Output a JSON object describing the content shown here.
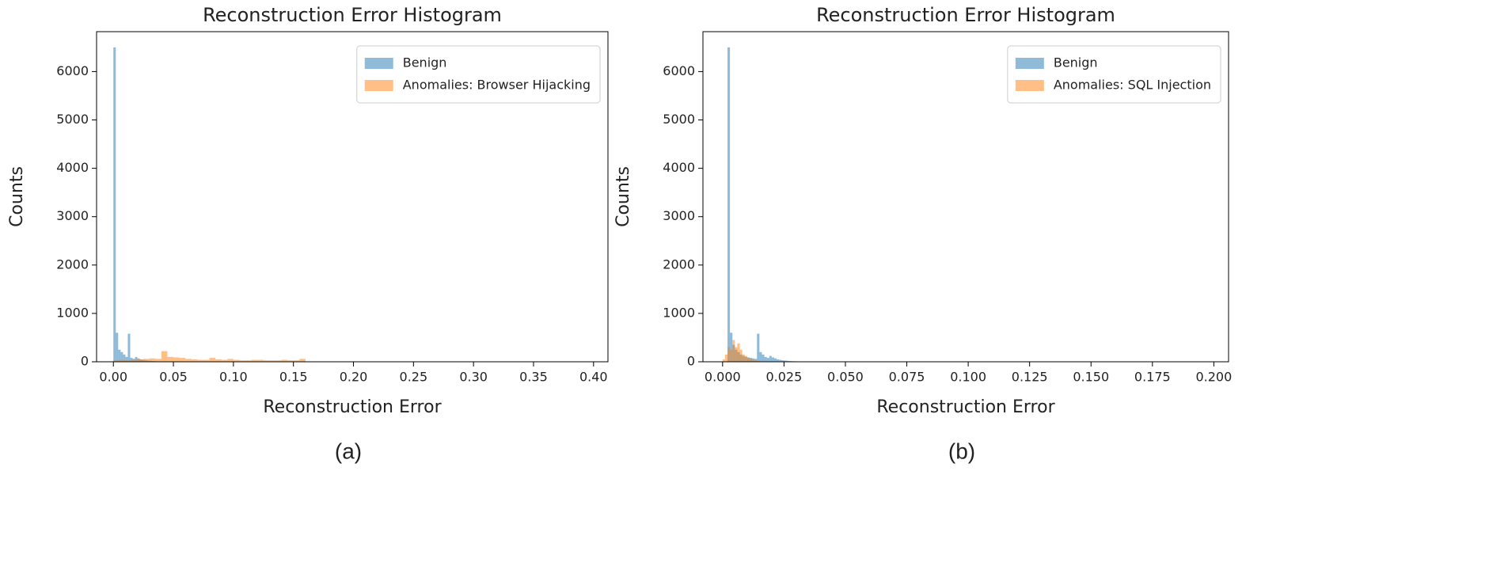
{
  "chart_data": [
    {
      "type": "histogram",
      "title": "Reconstruction Error Histogram",
      "xlabel": "Reconstruction Error",
      "ylabel": "Counts",
      "caption": "(a)",
      "legend": "upper right",
      "xlim": [
        -0.014,
        0.412
      ],
      "ylim": [
        0,
        6825
      ],
      "xticks": [
        {
          "value": 0,
          "label": "0.00"
        },
        {
          "value": 0.05,
          "label": "0.05"
        },
        {
          "value": 0.1,
          "label": "0.10"
        },
        {
          "value": 0.15,
          "label": "0.15"
        },
        {
          "value": 0.2,
          "label": "0.20"
        },
        {
          "value": 0.25,
          "label": "0.25"
        },
        {
          "value": 0.3,
          "label": "0.30"
        },
        {
          "value": 0.35,
          "label": "0.35"
        },
        {
          "value": 0.4,
          "label": "0.40"
        }
      ],
      "yticks": [
        0,
        1000,
        2000,
        3000,
        4000,
        5000,
        6000
      ],
      "series": [
        {
          "name": "Benign",
          "color": "#1f77b4",
          "bins": [
            0,
            0.002,
            0.004,
            0.006,
            0.008,
            0.01,
            0.012,
            0.014,
            0.016,
            0.018,
            0.02,
            0.022,
            0.024,
            0.026,
            0.028,
            0.03,
            0.032,
            0.034,
            0.036,
            0.038,
            0.04
          ],
          "values": [
            6500,
            600,
            250,
            200,
            150,
            100,
            580,
            80,
            60,
            100,
            70,
            50,
            40,
            30,
            25,
            20,
            15,
            10,
            8,
            5
          ]
        },
        {
          "name": "Anomalies: Browser Hijacking",
          "color": "#ff7f0e",
          "bins": [
            0,
            0.005,
            0.01,
            0.015,
            0.02,
            0.025,
            0.03,
            0.035,
            0.04,
            0.045,
            0.05,
            0.055,
            0.06,
            0.065,
            0.07,
            0.075,
            0.08,
            0.085,
            0.09,
            0.095,
            0.1,
            0.105,
            0.11,
            0.115,
            0.12,
            0.125,
            0.13,
            0.135,
            0.14,
            0.145,
            0.15,
            0.155,
            0.16
          ],
          "values": [
            30,
            40,
            30,
            40,
            50,
            60,
            70,
            60,
            220,
            100,
            90,
            80,
            60,
            50,
            40,
            40,
            80,
            50,
            40,
            60,
            40,
            30,
            30,
            40,
            40,
            30,
            30,
            30,
            40,
            30,
            30,
            60
          ]
        }
      ]
    },
    {
      "type": "histogram",
      "title": "Reconstruction Error Histogram",
      "xlabel": "Reconstruction Error",
      "ylabel": "Counts",
      "caption": "(b)",
      "legend": "upper right",
      "xlim": [
        -0.008,
        0.206
      ],
      "ylim": [
        0,
        6825
      ],
      "xticks": [
        {
          "value": 0,
          "label": "0.000"
        },
        {
          "value": 0.025,
          "label": "0.025"
        },
        {
          "value": 0.05,
          "label": "0.050"
        },
        {
          "value": 0.075,
          "label": "0.075"
        },
        {
          "value": 0.1,
          "label": "0.100"
        },
        {
          "value": 0.125,
          "label": "0.125"
        },
        {
          "value": 0.15,
          "label": "0.150"
        },
        {
          "value": 0.175,
          "label": "0.175"
        },
        {
          "value": 0.2,
          "label": "0.200"
        }
      ],
      "yticks": [
        0,
        1000,
        2000,
        3000,
        4000,
        5000,
        6000
      ],
      "series": [
        {
          "name": "Benign",
          "color": "#1f77b4",
          "bins": [
            0.002,
            0.003,
            0.004,
            0.005,
            0.006,
            0.007,
            0.008,
            0.009,
            0.01,
            0.011,
            0.012,
            0.013,
            0.014,
            0.015,
            0.016,
            0.017,
            0.018,
            0.019,
            0.02,
            0.021,
            0.022,
            0.023,
            0.024,
            0.025,
            0.026,
            0.027,
            0.028,
            0.029,
            0.03,
            0.031,
            0.032,
            0.033,
            0.034,
            0.035,
            0.036,
            0.037,
            0.038,
            0.039,
            0.04
          ],
          "values": [
            6500,
            600,
            350,
            250,
            200,
            150,
            120,
            100,
            90,
            80,
            70,
            60,
            580,
            200,
            150,
            100,
            80,
            120,
            90,
            70,
            50,
            40,
            30,
            25,
            20,
            15,
            12,
            10,
            8,
            6,
            5,
            4,
            3,
            2,
            2,
            1,
            1,
            1
          ]
        },
        {
          "name": "Anomalies: SQL Injection",
          "color": "#ff7f0e",
          "bins": [
            0,
            0.001,
            0.002,
            0.003,
            0.004,
            0.005,
            0.006,
            0.007,
            0.008,
            0.009,
            0.01,
            0.011,
            0.012,
            0.013,
            0.014,
            0.015
          ],
          "values": [
            50,
            150,
            300,
            250,
            450,
            300,
            380,
            250,
            150,
            120,
            80,
            60,
            40,
            30,
            20
          ]
        }
      ]
    }
  ]
}
